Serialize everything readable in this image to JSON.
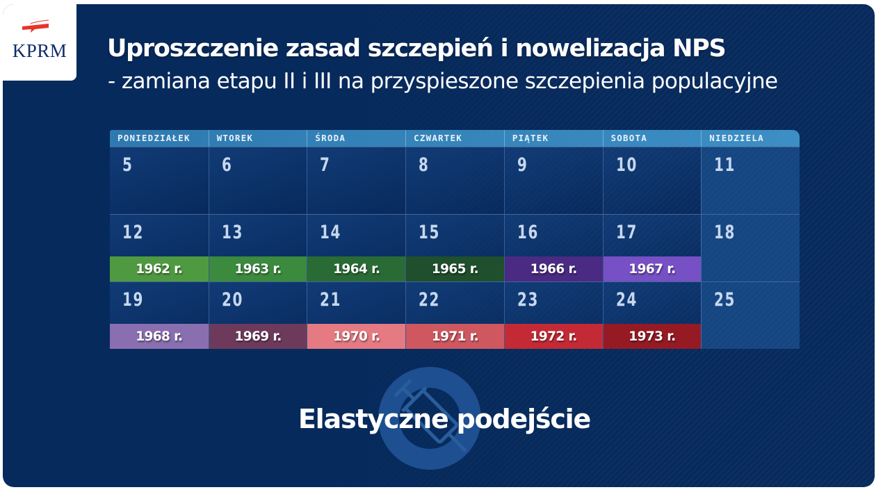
{
  "logo": {
    "text": "KPRM",
    "flag_colors": [
      "#e7332a",
      "#ffffff"
    ]
  },
  "header": {
    "title": "Uproszczenie zasad szczepień i nowelizacja NPS",
    "subtitle": "- zamiana etapu II i III na przyspieszone szczepienia populacyjne"
  },
  "calendar": {
    "weekdays": [
      "PONIEDZIAŁEK",
      "WTOREK",
      "ŚRODA",
      "CZWARTEK",
      "PIĄTEK",
      "SOBOTA",
      "NIEDZIELA"
    ],
    "weeks": [
      {
        "days": [
          {
            "num": "5"
          },
          {
            "num": "6"
          },
          {
            "num": "7"
          },
          {
            "num": "8"
          },
          {
            "num": "9"
          },
          {
            "num": "10"
          },
          {
            "num": "11"
          }
        ]
      },
      {
        "days": [
          {
            "num": "12",
            "band": "1962 r.",
            "color": "#4f9a40"
          },
          {
            "num": "13",
            "band": "1963 r.",
            "color": "#3b8a3e"
          },
          {
            "num": "14",
            "band": "1964 r.",
            "color": "#2a6b35"
          },
          {
            "num": "15",
            "band": "1965 r.",
            "color": "#1f4f2c"
          },
          {
            "num": "16",
            "band": "1966 r.",
            "color": "#4a2a82"
          },
          {
            "num": "17",
            "band": "1967 r.",
            "color": "#7650c4"
          },
          {
            "num": "18"
          }
        ]
      },
      {
        "days": [
          {
            "num": "19",
            "band": "1968 r.",
            "color": "#8a6fb0"
          },
          {
            "num": "20",
            "band": "1969 r.",
            "color": "#6e3a5c"
          },
          {
            "num": "21",
            "band": "1970 r.",
            "color": "#e57a82"
          },
          {
            "num": "22",
            "band": "1971 r.",
            "color": "#cf5860"
          },
          {
            "num": "23",
            "band": "1972 r.",
            "color": "#c42a35"
          },
          {
            "num": "24",
            "band": "1973 r.",
            "color": "#951a24"
          },
          {
            "num": "25"
          }
        ]
      }
    ]
  },
  "footer": {
    "tagline": "Elastyczne podejście",
    "icon": "syringe-icon"
  },
  "colors": {
    "background": "#072a5c",
    "header_bar": "#2e7ab0",
    "text": "#ffffff"
  }
}
